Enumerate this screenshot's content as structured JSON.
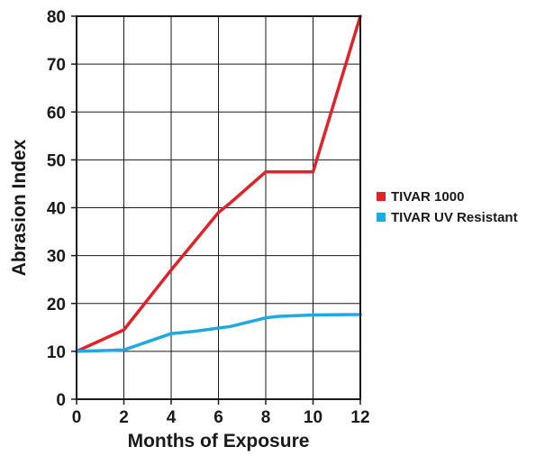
{
  "chart_data": {
    "type": "line",
    "title": "",
    "xlabel": "Months of Exposure",
    "ylabel": "Abrasion Index",
    "xlim": [
      0,
      12
    ],
    "ylim": [
      0,
      80
    ],
    "xticks": [
      "0",
      "2",
      "4",
      "6",
      "8",
      "10",
      "12"
    ],
    "yticks": [
      "0",
      "10",
      "20",
      "30",
      "40",
      "50",
      "60",
      "70",
      "80"
    ],
    "grid": true,
    "legend_position": "right",
    "series": [
      {
        "name": "TIVAR 1000",
        "color": "#e32129",
        "x": [
          0,
          2,
          4,
          6,
          6.5,
          8,
          10,
          12
        ],
        "y": [
          10,
          14.5,
          27,
          39,
          41,
          47.5,
          47.5,
          80
        ]
      },
      {
        "name": "TIVAR UV Resistant",
        "color": "#1ea9e1",
        "x": [
          0,
          2,
          4,
          5,
          6.5,
          8,
          8.5,
          10,
          12
        ],
        "y": [
          10,
          10.3,
          13.7,
          14.2,
          15.2,
          17,
          17.3,
          17.6,
          17.7
        ]
      }
    ]
  }
}
